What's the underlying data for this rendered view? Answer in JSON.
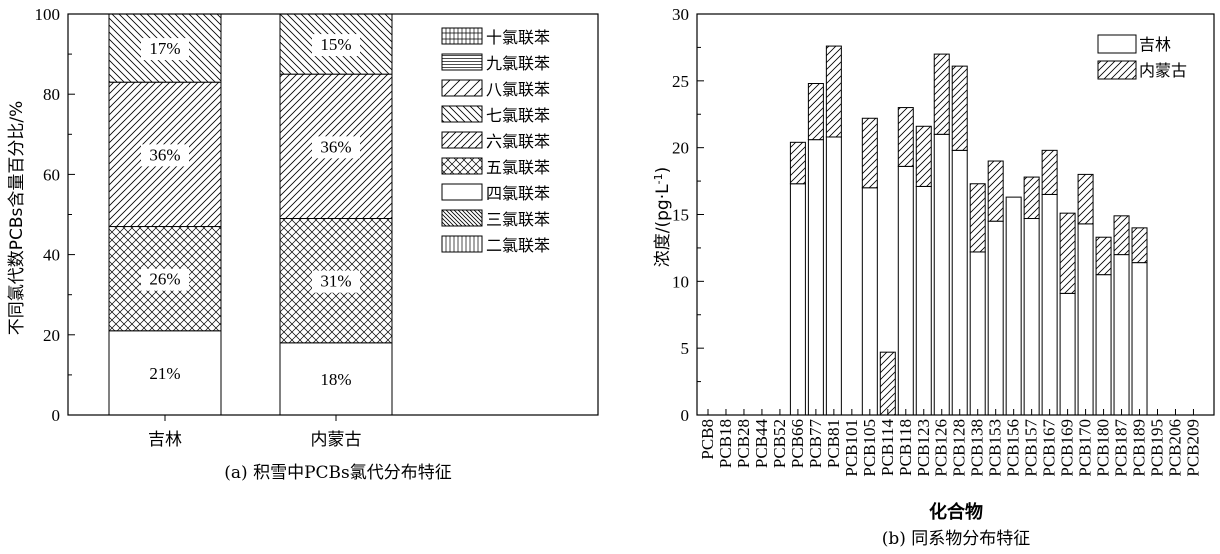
{
  "chart_data": [
    {
      "type": "bar",
      "stacked": true,
      "caption": "(a) 积雪中PCBs氯代分布特征",
      "ylabel": "不同氯代数PCBs含量百分比/%",
      "xlabel": "",
      "ylim": [
        0,
        100
      ],
      "yticks": [
        0,
        20,
        40,
        60,
        80,
        100
      ],
      "categories": [
        "吉林",
        "内蒙古"
      ],
      "legend_position": "top-right",
      "series": [
        {
          "name": "四氯联苯",
          "pattern": "none",
          "values": [
            21,
            18
          ],
          "labels": [
            "21%",
            "18%"
          ]
        },
        {
          "name": "五氯联苯",
          "pattern": "cross",
          "values": [
            26,
            31
          ],
          "labels": [
            "26%",
            "31%"
          ]
        },
        {
          "name": "六氯联苯",
          "pattern": "slash",
          "values": [
            36,
            36
          ],
          "labels": [
            "36%",
            "36%"
          ]
        },
        {
          "name": "七氯联苯",
          "pattern": "back",
          "values": [
            17,
            15
          ],
          "labels": [
            "17%",
            "15%"
          ]
        }
      ],
      "legend": [
        {
          "name": "十氯联苯",
          "pattern": "grid"
        },
        {
          "name": "九氯联苯",
          "pattern": "horiz"
        },
        {
          "name": "八氯联苯",
          "pattern": "slash-wide"
        },
        {
          "name": "七氯联苯",
          "pattern": "back"
        },
        {
          "name": "六氯联苯",
          "pattern": "slash"
        },
        {
          "name": "五氯联苯",
          "pattern": "cross"
        },
        {
          "name": "四氯联苯",
          "pattern": "none"
        },
        {
          "name": "三氯联苯",
          "pattern": "back-dense"
        },
        {
          "name": "二氯联苯",
          "pattern": "vert"
        }
      ]
    },
    {
      "type": "bar",
      "stacked": true,
      "caption": "(b) 同系物分布特征",
      "xlabel": "化合物",
      "ylabel_prefix": "浓度/(pg·L",
      "ylabel_sup": "-1",
      "ylabel_suffix": ")",
      "ylim": [
        0,
        30
      ],
      "yticks": [
        0,
        5,
        10,
        15,
        20,
        25,
        30
      ],
      "legend_position": "top-right",
      "categories": [
        "PCB8",
        "PCB18",
        "PCB28",
        "PCB44",
        "PCB52",
        "PCB66",
        "PCB77",
        "PCB81",
        "PCB101",
        "PCB105",
        "PCB114",
        "PCB118",
        "PCB123",
        "PCB126",
        "PCB128",
        "PCB138",
        "PCB153",
        "PCB156",
        "PCB157",
        "PCB167",
        "PCB169",
        "PCB170",
        "PCB180",
        "PCB187",
        "PCB189",
        "PCB195",
        "PCB206",
        "PCB209"
      ],
      "series": [
        {
          "name": "吉林",
          "pattern": "none",
          "values": [
            0,
            0,
            0,
            0,
            0,
            17.3,
            20.6,
            20.8,
            0,
            17.0,
            0,
            18.6,
            17.1,
            21.0,
            19.8,
            12.2,
            14.5,
            16.3,
            14.7,
            16.5,
            9.1,
            14.3,
            10.5,
            12.0,
            11.4,
            0,
            0,
            0
          ]
        },
        {
          "name": "内蒙古",
          "pattern": "slash",
          "values": [
            0,
            0,
            0,
            0,
            0,
            3.1,
            4.2,
            6.8,
            0,
            5.2,
            4.7,
            4.4,
            4.5,
            6.0,
            6.3,
            5.1,
            4.5,
            0,
            3.1,
            3.3,
            6.0,
            3.7,
            2.8,
            2.9,
            2.6,
            0,
            0,
            0
          ]
        }
      ]
    }
  ]
}
